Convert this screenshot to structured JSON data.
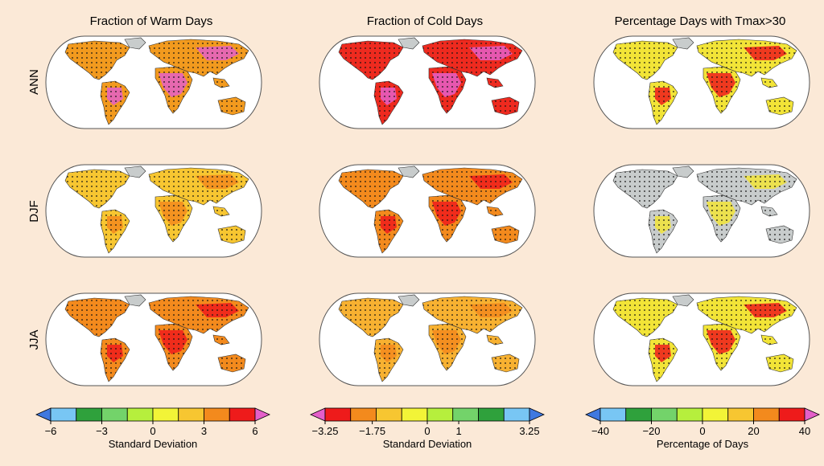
{
  "figure": {
    "background": "#fbe9d7",
    "columns": [
      {
        "title": "Fraction of Warm Days"
      },
      {
        "title": "Fraction of Cold Days"
      },
      {
        "title": "Percentage Days with Tmax>30"
      }
    ],
    "rows": [
      {
        "label": "ANN"
      },
      {
        "label": "DJF"
      },
      {
        "label": "JJA"
      }
    ],
    "colorbars": [
      {
        "label": "Standard Deviation",
        "ticks": [
          "−6",
          "−3",
          "0",
          "3",
          "6"
        ],
        "tick_values": [
          -6,
          -3,
          0,
          3,
          6
        ],
        "range": [
          -6,
          6
        ],
        "colors": [
          "#3f78e0",
          "#78c6f4",
          "#2fa13c",
          "#73d36a",
          "#b6ef3d",
          "#f2f437",
          "#f7c631",
          "#f38a1d",
          "#ee1b1b",
          "#e45fc9"
        ]
      },
      {
        "label": "Standard Deviation",
        "ticks": [
          "−3.25",
          "−1.75",
          "0",
          "1",
          "3.25"
        ],
        "tick_values": [
          -3.25,
          -1.75,
          0,
          1,
          3.25
        ],
        "range": [
          -3.25,
          3.25
        ],
        "colors": [
          "#e45fc9",
          "#ee1b1b",
          "#f38a1d",
          "#f7c631",
          "#f2f437",
          "#b6ef3d",
          "#73d36a",
          "#2fa13c",
          "#78c6f4",
          "#3f78e0"
        ]
      },
      {
        "label": "Percentage of Days",
        "ticks": [
          "−40",
          "−20",
          "0",
          "20",
          "40"
        ],
        "tick_values": [
          -40,
          -20,
          0,
          20,
          40
        ],
        "range": [
          -40,
          40
        ],
        "colors": [
          "#3f78e0",
          "#78c6f4",
          "#2fa13c",
          "#73d36a",
          "#b6ef3d",
          "#f2f437",
          "#f7c631",
          "#f38a1d",
          "#ee1b1b",
          "#e45fc9"
        ]
      }
    ],
    "panels": [
      {
        "row": 0,
        "col": 0,
        "fill": "#f29a1e",
        "accent": "#e45fc9",
        "stipple": true
      },
      {
        "row": 0,
        "col": 1,
        "fill": "#ee2a1f",
        "accent": "#e45fc9",
        "stipple": true
      },
      {
        "row": 0,
        "col": 2,
        "fill": "#f2e437",
        "accent": "#ee1b1b",
        "stipple": true
      },
      {
        "row": 1,
        "col": 0,
        "fill": "#f7c631",
        "accent": "#f38a1d",
        "stipple": true
      },
      {
        "row": 1,
        "col": 1,
        "fill": "#f38a1d",
        "accent": "#ee1b1b",
        "stipple": true
      },
      {
        "row": 1,
        "col": 2,
        "fill": "#c8cccc",
        "accent": "#f2e437",
        "stipple": true
      },
      {
        "row": 2,
        "col": 0,
        "fill": "#f38a1d",
        "accent": "#ee1b1b",
        "stipple": true
      },
      {
        "row": 2,
        "col": 1,
        "fill": "#f7b131",
        "accent": "#f38a1d",
        "stipple": true
      },
      {
        "row": 2,
        "col": 2,
        "fill": "#f2e437",
        "accent": "#ee1b1b",
        "stipple": true
      }
    ],
    "land_gray": "#c8cccc",
    "coast_color": "#333333",
    "dot_color": "#111111"
  }
}
